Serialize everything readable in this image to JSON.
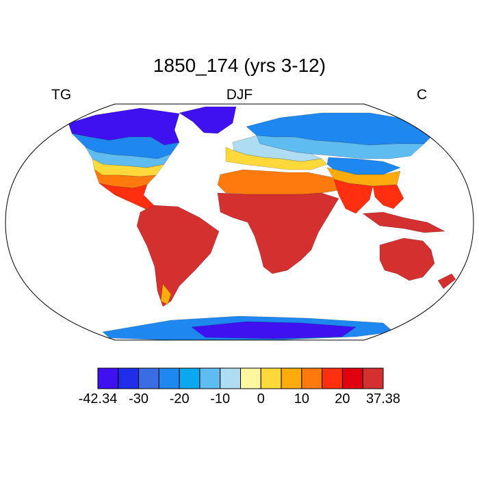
{
  "title": "1850_174 (yrs 3-12)",
  "label_left": "TG",
  "label_center": "DJF",
  "label_right": "C",
  "colorbar": {
    "colors": [
      "#3f10f0",
      "#1f2ee8",
      "#3a6ce4",
      "#1e88f0",
      "#0aa8f0",
      "#5fbcf0",
      "#aedcf2",
      "#fff6a0",
      "#ffd93a",
      "#ffab0d",
      "#ff7a0d",
      "#ff2f10",
      "#e00010",
      "#d43030"
    ],
    "tick_labels": [
      "-42.34",
      "-30",
      "-20",
      "-10",
      "0",
      "10",
      "20",
      "37.38"
    ],
    "tick_values": [
      -42.34,
      -30,
      -20,
      -10,
      0,
      10,
      20,
      37.38
    ]
  },
  "map_colors": {
    "very_cold": "#3f10f0",
    "cold": "#2a44e8",
    "cool": "#1e88f0",
    "mild_cool": "#5fbcf0",
    "near_zero": "#aedcf2",
    "zero_warm": "#fff6a0",
    "warm_yellow": "#ffd93a",
    "orange": "#ffab0d",
    "dark_orange": "#ff7a0d",
    "red": "#ff2f10",
    "hot": "#d43030"
  }
}
